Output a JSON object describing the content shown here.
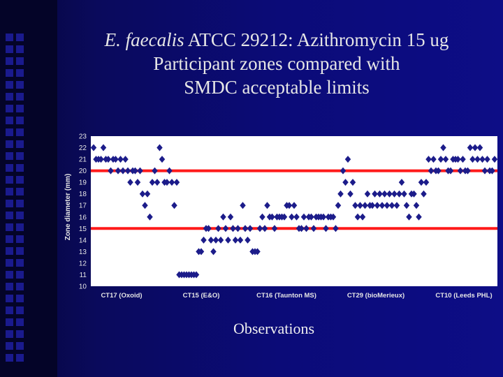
{
  "title": {
    "italic_part": "E. faecalis",
    "line1_rest": " ATCC 29212: Azithromycin 15 ug",
    "line2": "Participant zones compared with",
    "line3": "SMDC acceptable limits"
  },
  "colors": {
    "marker": "#1c1c8a",
    "limit": "#ff1a1a",
    "plot_bg": "#ffffff",
    "axis_text": "#e6e6e6"
  },
  "chart_data": {
    "type": "scatter",
    "title": "",
    "xlabel": "Observations",
    "ylabel": "Zone diameter (mm)",
    "ylim": [
      10,
      23
    ],
    "yticks": [
      10,
      11,
      12,
      13,
      14,
      15,
      16,
      17,
      18,
      19,
      20,
      21,
      22,
      23
    ],
    "grid": false,
    "x_groups": [
      "CT17 (Oxoid)",
      "CT15 (E&O)",
      "CT16 (Taunton MS)",
      "CT29 (bioMerieux)",
      "CT10 (Leeds PHL)"
    ],
    "acceptable_limits": [
      15,
      20
    ],
    "marker": "diamond",
    "series": [
      {
        "name": "",
        "points": [
          [
            1,
            22
          ],
          [
            2,
            21
          ],
          [
            3,
            21
          ],
          [
            4,
            21
          ],
          [
            5,
            22
          ],
          [
            6,
            21
          ],
          [
            7,
            21
          ],
          [
            8,
            20
          ],
          [
            9,
            21
          ],
          [
            10,
            21
          ],
          [
            11,
            20
          ],
          [
            12,
            21
          ],
          [
            13,
            20
          ],
          [
            14,
            21
          ],
          [
            15,
            20
          ],
          [
            16,
            19
          ],
          [
            17,
            20
          ],
          [
            18,
            20
          ],
          [
            19,
            19
          ],
          [
            20,
            20
          ],
          [
            21,
            18
          ],
          [
            22,
            17
          ],
          [
            23,
            18
          ],
          [
            24,
            16
          ],
          [
            25,
            19
          ],
          [
            26,
            20
          ],
          [
            27,
            19
          ],
          [
            28,
            22
          ],
          [
            29,
            21
          ],
          [
            30,
            19
          ],
          [
            31,
            19
          ],
          [
            32,
            20
          ],
          [
            33,
            19
          ],
          [
            34,
            17
          ],
          [
            35,
            19
          ],
          [
            36,
            11
          ],
          [
            37,
            11
          ],
          [
            38,
            11
          ],
          [
            39,
            11
          ],
          [
            40,
            11
          ],
          [
            41,
            11
          ],
          [
            42,
            11
          ],
          [
            43,
            11
          ],
          [
            44,
            13
          ],
          [
            45,
            13
          ],
          [
            46,
            14
          ],
          [
            47,
            15
          ],
          [
            48,
            15
          ],
          [
            49,
            14
          ],
          [
            50,
            13
          ],
          [
            51,
            14
          ],
          [
            52,
            15
          ],
          [
            53,
            14
          ],
          [
            54,
            16
          ],
          [
            55,
            15
          ],
          [
            56,
            14
          ],
          [
            57,
            16
          ],
          [
            58,
            15
          ],
          [
            59,
            14
          ],
          [
            60,
            15
          ],
          [
            61,
            14
          ],
          [
            62,
            17
          ],
          [
            63,
            15
          ],
          [
            64,
            14
          ],
          [
            65,
            15
          ],
          [
            66,
            13
          ],
          [
            67,
            13
          ],
          [
            68,
            13
          ],
          [
            69,
            15
          ],
          [
            70,
            16
          ],
          [
            71,
            15
          ],
          [
            72,
            17
          ],
          [
            73,
            16
          ],
          [
            74,
            16
          ],
          [
            75,
            15
          ],
          [
            76,
            16
          ],
          [
            77,
            16
          ],
          [
            78,
            16
          ],
          [
            79,
            16
          ],
          [
            80,
            17
          ],
          [
            81,
            17
          ],
          [
            82,
            16
          ],
          [
            83,
            17
          ],
          [
            84,
            16
          ],
          [
            85,
            15
          ],
          [
            86,
            15
          ],
          [
            87,
            16
          ],
          [
            88,
            15
          ],
          [
            89,
            16
          ],
          [
            90,
            16
          ],
          [
            91,
            15
          ],
          [
            92,
            16
          ],
          [
            93,
            16
          ],
          [
            94,
            16
          ],
          [
            95,
            16
          ],
          [
            96,
            15
          ],
          [
            97,
            16
          ],
          [
            98,
            16
          ],
          [
            99,
            16
          ],
          [
            100,
            15
          ],
          [
            101,
            17
          ],
          [
            102,
            18
          ],
          [
            103,
            20
          ],
          [
            104,
            19
          ],
          [
            105,
            21
          ],
          [
            106,
            18
          ],
          [
            107,
            19
          ],
          [
            108,
            17
          ],
          [
            109,
            16
          ],
          [
            110,
            17
          ],
          [
            111,
            16
          ],
          [
            112,
            17
          ],
          [
            113,
            18
          ],
          [
            114,
            17
          ],
          [
            115,
            17
          ],
          [
            116,
            18
          ],
          [
            117,
            17
          ],
          [
            118,
            18
          ],
          [
            119,
            17
          ],
          [
            120,
            18
          ],
          [
            121,
            17
          ],
          [
            122,
            18
          ],
          [
            123,
            17
          ],
          [
            124,
            18
          ],
          [
            125,
            17
          ],
          [
            126,
            18
          ],
          [
            127,
            19
          ],
          [
            128,
            18
          ],
          [
            129,
            17
          ],
          [
            130,
            16
          ],
          [
            131,
            18
          ],
          [
            132,
            18
          ],
          [
            133,
            17
          ],
          [
            134,
            16
          ],
          [
            135,
            19
          ],
          [
            136,
            18
          ],
          [
            137,
            19
          ],
          [
            138,
            21
          ],
          [
            139,
            20
          ],
          [
            140,
            21
          ],
          [
            141,
            20
          ],
          [
            142,
            20
          ],
          [
            143,
            21
          ],
          [
            144,
            22
          ],
          [
            145,
            21
          ],
          [
            146,
            20
          ],
          [
            147,
            20
          ],
          [
            148,
            21
          ],
          [
            149,
            21
          ],
          [
            150,
            21
          ],
          [
            151,
            20
          ],
          [
            152,
            21
          ],
          [
            153,
            20
          ],
          [
            154,
            20
          ],
          [
            155,
            22
          ],
          [
            156,
            21
          ],
          [
            157,
            22
          ],
          [
            158,
            21
          ],
          [
            159,
            22
          ],
          [
            160,
            21
          ],
          [
            161,
            20
          ],
          [
            162,
            21
          ],
          [
            163,
            20
          ],
          [
            164,
            20
          ],
          [
            165,
            21
          ]
        ]
      }
    ]
  }
}
